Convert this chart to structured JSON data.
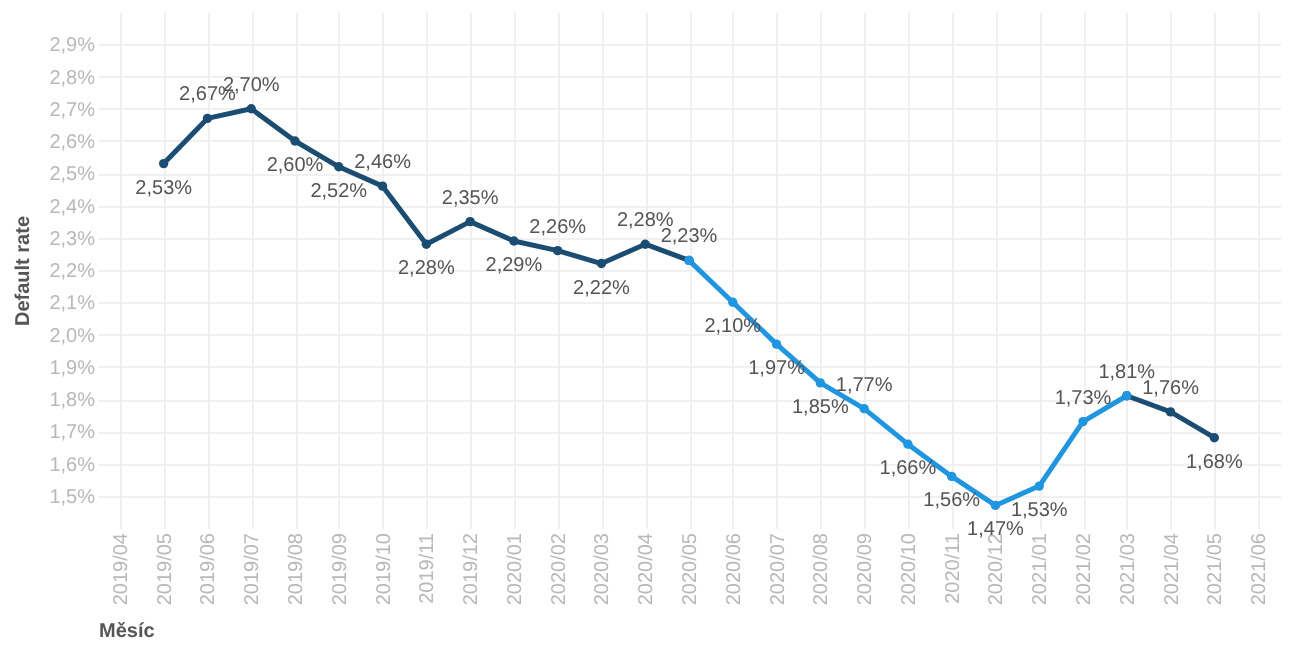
{
  "chart_data": {
    "type": "line",
    "xlabel": "Měsíc",
    "ylabel": "Default rate",
    "categories": [
      "2019/04",
      "2019/05",
      "2019/06",
      "2019/07",
      "2019/08",
      "2019/09",
      "2019/10",
      "2019/11",
      "2019/12",
      "2020/01",
      "2020/02",
      "2020/03",
      "2020/04",
      "2020/05",
      "2020/06",
      "2020/07",
      "2020/08",
      "2020/09",
      "2020/10",
      "2020/11",
      "2020/12",
      "2021/01",
      "2021/02",
      "2021/03",
      "2021/04",
      "2021/05",
      "2021/06"
    ],
    "series": [
      {
        "color": "#1b4d72",
        "values": [
          null,
          2.53,
          2.67,
          2.7,
          2.6,
          2.52,
          2.46,
          2.28,
          2.35,
          2.29,
          2.26,
          2.22,
          2.28,
          2.23,
          null,
          null,
          null,
          null,
          null,
          null,
          null,
          null,
          null,
          1.81,
          1.76,
          1.68,
          null
        ],
        "value_labels": [
          null,
          "2,53%",
          "2,67%",
          "2,70%",
          "2,60%",
          "2,52%",
          "2,46%",
          "2,28%",
          "2,35%",
          "2,29%",
          "2,26%",
          "2,22%",
          "2,28%",
          "2,23%",
          null,
          null,
          null,
          null,
          null,
          null,
          null,
          null,
          null,
          "1,81%",
          "1,76%",
          "1,68%",
          null
        ]
      },
      {
        "color": "#2196e0",
        "values": [
          null,
          null,
          null,
          null,
          null,
          null,
          null,
          null,
          null,
          null,
          null,
          null,
          null,
          2.23,
          2.1,
          1.97,
          1.85,
          1.77,
          1.66,
          1.56,
          1.47,
          1.53,
          1.73,
          1.81,
          null,
          null,
          null
        ],
        "value_labels": [
          null,
          null,
          null,
          null,
          null,
          null,
          null,
          null,
          null,
          null,
          null,
          null,
          null,
          null,
          "2,10%",
          "1,97%",
          "1,85%",
          "1,77%",
          "1,66%",
          "1,56%",
          "1,47%",
          "1,53%",
          "1,73%",
          null,
          null,
          null,
          null
        ]
      }
    ],
    "ylim": [
      1.4,
      3.0
    ],
    "yticks": [
      {
        "value": 1.5,
        "label": "1,5%"
      },
      {
        "value": 1.6,
        "label": "1,6%"
      },
      {
        "value": 1.7,
        "label": "1,7%"
      },
      {
        "value": 1.8,
        "label": "1,8%"
      },
      {
        "value": 1.9,
        "label": "1,9%"
      },
      {
        "value": 2.0,
        "label": "2,0%"
      },
      {
        "value": 2.1,
        "label": "2,1%"
      },
      {
        "value": 2.2,
        "label": "2,2%"
      },
      {
        "value": 2.3,
        "label": "2,3%"
      },
      {
        "value": 2.4,
        "label": "2,4%"
      },
      {
        "value": 2.5,
        "label": "2,5%"
      },
      {
        "value": 2.6,
        "label": "2,6%"
      },
      {
        "value": 2.7,
        "label": "2,7%"
      },
      {
        "value": 2.8,
        "label": "2,8%"
      },
      {
        "value": 2.9,
        "label": "2,9%"
      }
    ],
    "grid": true,
    "marker": "circle",
    "line_style": "solid"
  }
}
